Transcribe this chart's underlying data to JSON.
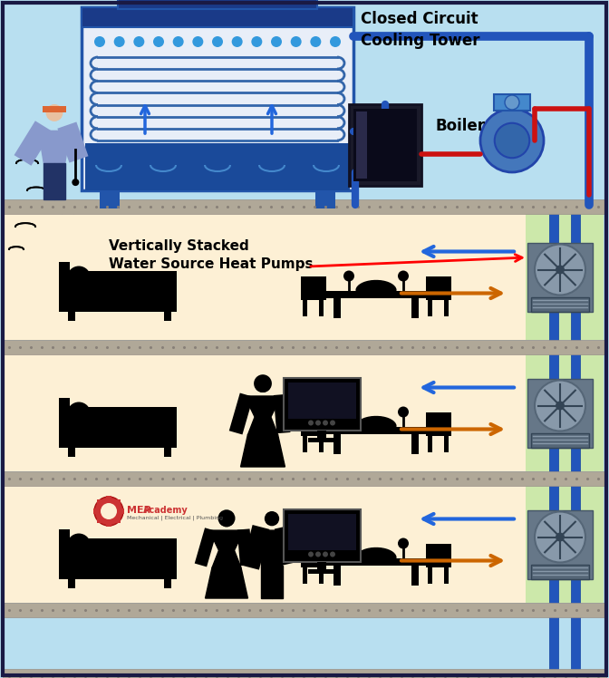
{
  "bg_sky": "#b8dff0",
  "floor_bg": "#fdf0d5",
  "slab_color": "#b0a898",
  "slab_dot_color": "#888078",
  "pipe_blue": "#2255bb",
  "pipe_red": "#cc1111",
  "arrow_blue": "#2266dd",
  "arrow_orange": "#cc6600",
  "ct_frame": "#2255aa",
  "ct_body": "#e8eef8",
  "ct_water": "#1a4a9a",
  "ct_top": "#1a3a88",
  "boiler_dark": "#222233",
  "pump_blue": "#4477bb",
  "chase_bg": "#cce8aa",
  "hp_body": "#667788",
  "hp_fan_bg": "#8899aa",
  "hp_fan_line": "#334455",
  "black": "#111111",
  "label_ct": "Closed Circuit\nCooling Tower",
  "label_boiler": "Boiler",
  "label_vs": "Vertically Stacked\nWater Source Heat Pumps",
  "figw": 6.72,
  "figh": 7.48,
  "dpi": 100
}
